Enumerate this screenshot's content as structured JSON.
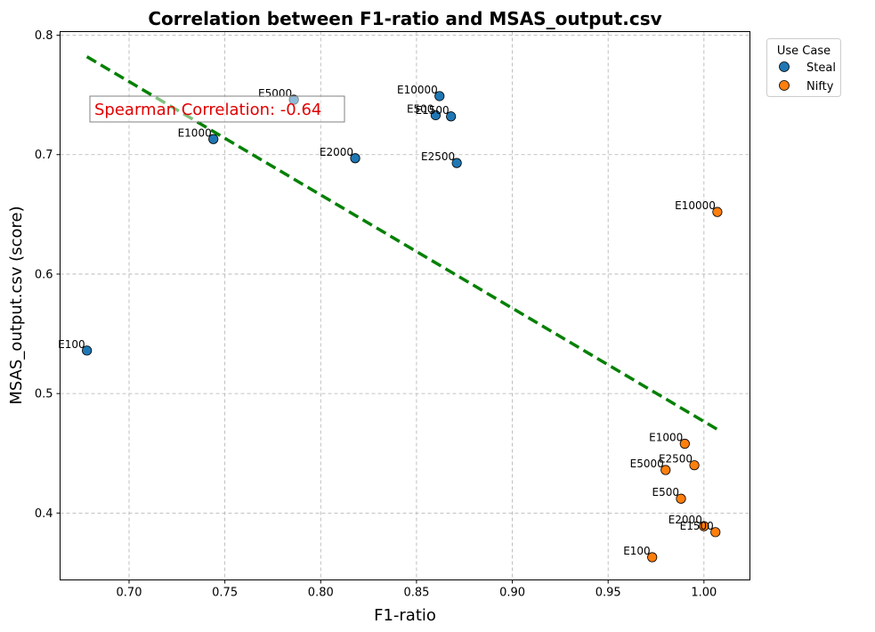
{
  "chart_data": {
    "type": "scatter",
    "title": "Correlation between F1-ratio and MSAS_output.csv",
    "xlabel": "F1-ratio",
    "ylabel": "MSAS_output.csv (score)",
    "xlim": [
      0.664,
      1.024
    ],
    "ylim": [
      0.344,
      0.803
    ],
    "xticks": [
      "0.70",
      "0.75",
      "0.80",
      "0.85",
      "0.90",
      "0.95",
      "1.00"
    ],
    "yticks": [
      "0.4",
      "0.5",
      "0.6",
      "0.7",
      "0.8"
    ],
    "grid": true,
    "legend": {
      "title": "Use Case",
      "placement": "outside-top-right"
    },
    "annotation": {
      "text": "Spearman Correlation: -0.64",
      "color": "#e00000"
    },
    "trendline": {
      "color": "#008000",
      "style": "dashed",
      "x": [
        0.678,
        1.007
      ],
      "y": [
        0.782,
        0.47
      ]
    },
    "series": [
      {
        "name": "Steal",
        "color": "#1f77b4",
        "points": [
          {
            "label": "E100",
            "x": 0.678,
            "y": 0.536
          },
          {
            "label": "E1000",
            "x": 0.744,
            "y": 0.713
          },
          {
            "label": "E5000",
            "x": 0.786,
            "y": 0.746
          },
          {
            "label": "E2000",
            "x": 0.818,
            "y": 0.697
          },
          {
            "label": "E500",
            "x": 0.86,
            "y": 0.733
          },
          {
            "label": "E10000",
            "x": 0.862,
            "y": 0.749
          },
          {
            "label": "E1500",
            "x": 0.868,
            "y": 0.732
          },
          {
            "label": "E2500",
            "x": 0.871,
            "y": 0.693
          }
        ]
      },
      {
        "name": "Nifty",
        "color": "#ff7f0e",
        "points": [
          {
            "label": "E100",
            "x": 0.973,
            "y": 0.363
          },
          {
            "label": "E5000",
            "x": 0.98,
            "y": 0.436
          },
          {
            "label": "E500",
            "x": 0.988,
            "y": 0.412
          },
          {
            "label": "E1000",
            "x": 0.99,
            "y": 0.458
          },
          {
            "label": "E2500",
            "x": 0.995,
            "y": 0.44
          },
          {
            "label": "E2000",
            "x": 1.0,
            "y": 0.389
          },
          {
            "label": "E1500",
            "x": 1.006,
            "y": 0.384
          },
          {
            "label": "E10000",
            "x": 1.007,
            "y": 0.652
          }
        ]
      }
    ]
  }
}
